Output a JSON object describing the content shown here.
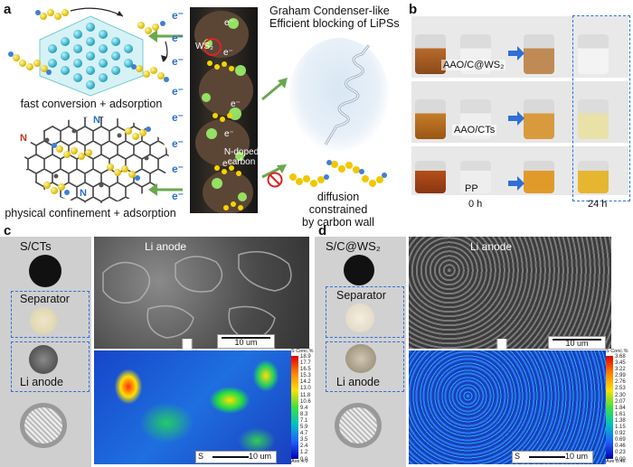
{
  "panel_a": {
    "label": "a",
    "electron": "e⁻",
    "ws2_label": "WS₂",
    "n_doped_carbon": [
      "N-doped",
      "carbon"
    ],
    "n_atom": "N",
    "caption_fast": "fast conversion + adsorption",
    "caption_physical": "physical confinement + adsorption",
    "graham_line1": "Graham Condenser-like",
    "graham_line2": "Efficient blocking of LiPSs",
    "diffusion_line1": "diffusion constrained",
    "diffusion_line2": "by carbon wall"
  },
  "panel_b": {
    "label": "b",
    "rows": [
      "AAO/C@WS₂",
      "AAO/CTs",
      "PP"
    ],
    "time_start": "0 h",
    "time_end": "24 h"
  },
  "panel_c": {
    "label": "c",
    "sample_title": "S/CTs",
    "separator": "Separator",
    "li_anode_left": "Li anode",
    "sem_title": "Li anode",
    "scale_sem": "10 um",
    "scale_map": "10 um",
    "map_s": "S",
    "cbar_header": "S Conc.%",
    "cbar_ticks": [
      "18.9",
      "17.7",
      "16.5",
      "15.3",
      "14.2",
      "13.0",
      "11.8",
      "10.6",
      "9.4",
      "8.3",
      "7.1",
      "5.9",
      "4.7",
      "3.5",
      "2.4",
      "1.2",
      "0.0"
    ],
    "cbar_ave": "Ave 4.0"
  },
  "panel_d": {
    "label": "d",
    "sample_title": "S/C@WS₂",
    "separator": "Separator",
    "li_anode_left": "Li anode",
    "sem_title": "Li anode",
    "scale_sem": "10 um",
    "scale_map": "10 um",
    "map_s": "S",
    "cbar_header": "S Conc.%",
    "cbar_ticks": [
      "3.68",
      "3.45",
      "3.22",
      "2.99",
      "2.76",
      "2.53",
      "2.30",
      "2.07",
      "1.84",
      "1.61",
      "1.38",
      "1.15",
      "0.92",
      "0.69",
      "0.46",
      "0.23",
      "0.00"
    ],
    "cbar_ave": "Ave 0.46"
  }
}
